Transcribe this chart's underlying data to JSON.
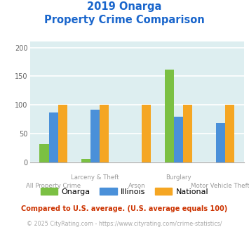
{
  "title_line1": "2019 Onarga",
  "title_line2": "Property Crime Comparison",
  "categories": [
    "All Property Crime",
    "Larceny & Theft",
    "Arson",
    "Burglary",
    "Motor Vehicle Theft"
  ],
  "cat_labels_row1": [
    "",
    "Larceny & Theft",
    "",
    "Burglary",
    ""
  ],
  "cat_labels_row2": [
    "All Property Crime",
    "",
    "Arson",
    "",
    "Motor Vehicle Theft"
  ],
  "series": {
    "Onarga": [
      32,
      6,
      0,
      162,
      0
    ],
    "Illinois": [
      87,
      92,
      0,
      79,
      68
    ],
    "National": [
      100,
      100,
      100,
      100,
      100
    ]
  },
  "colors": {
    "Onarga": "#7bc043",
    "Illinois": "#4a90d9",
    "National": "#f5a623"
  },
  "ylim": [
    0,
    210
  ],
  "yticks": [
    0,
    50,
    100,
    150,
    200
  ],
  "background_color": "#ddeef0",
  "grid_color": "#ffffff",
  "title_color": "#1a66cc",
  "axis_label_color": "#9a9a9a",
  "footnote1": "Compared to U.S. average. (U.S. average equals 100)",
  "footnote2": "© 2025 CityRating.com - https://www.cityrating.com/crime-statistics/",
  "footnote1_color": "#cc3300",
  "footnote2_color": "#aaaaaa"
}
